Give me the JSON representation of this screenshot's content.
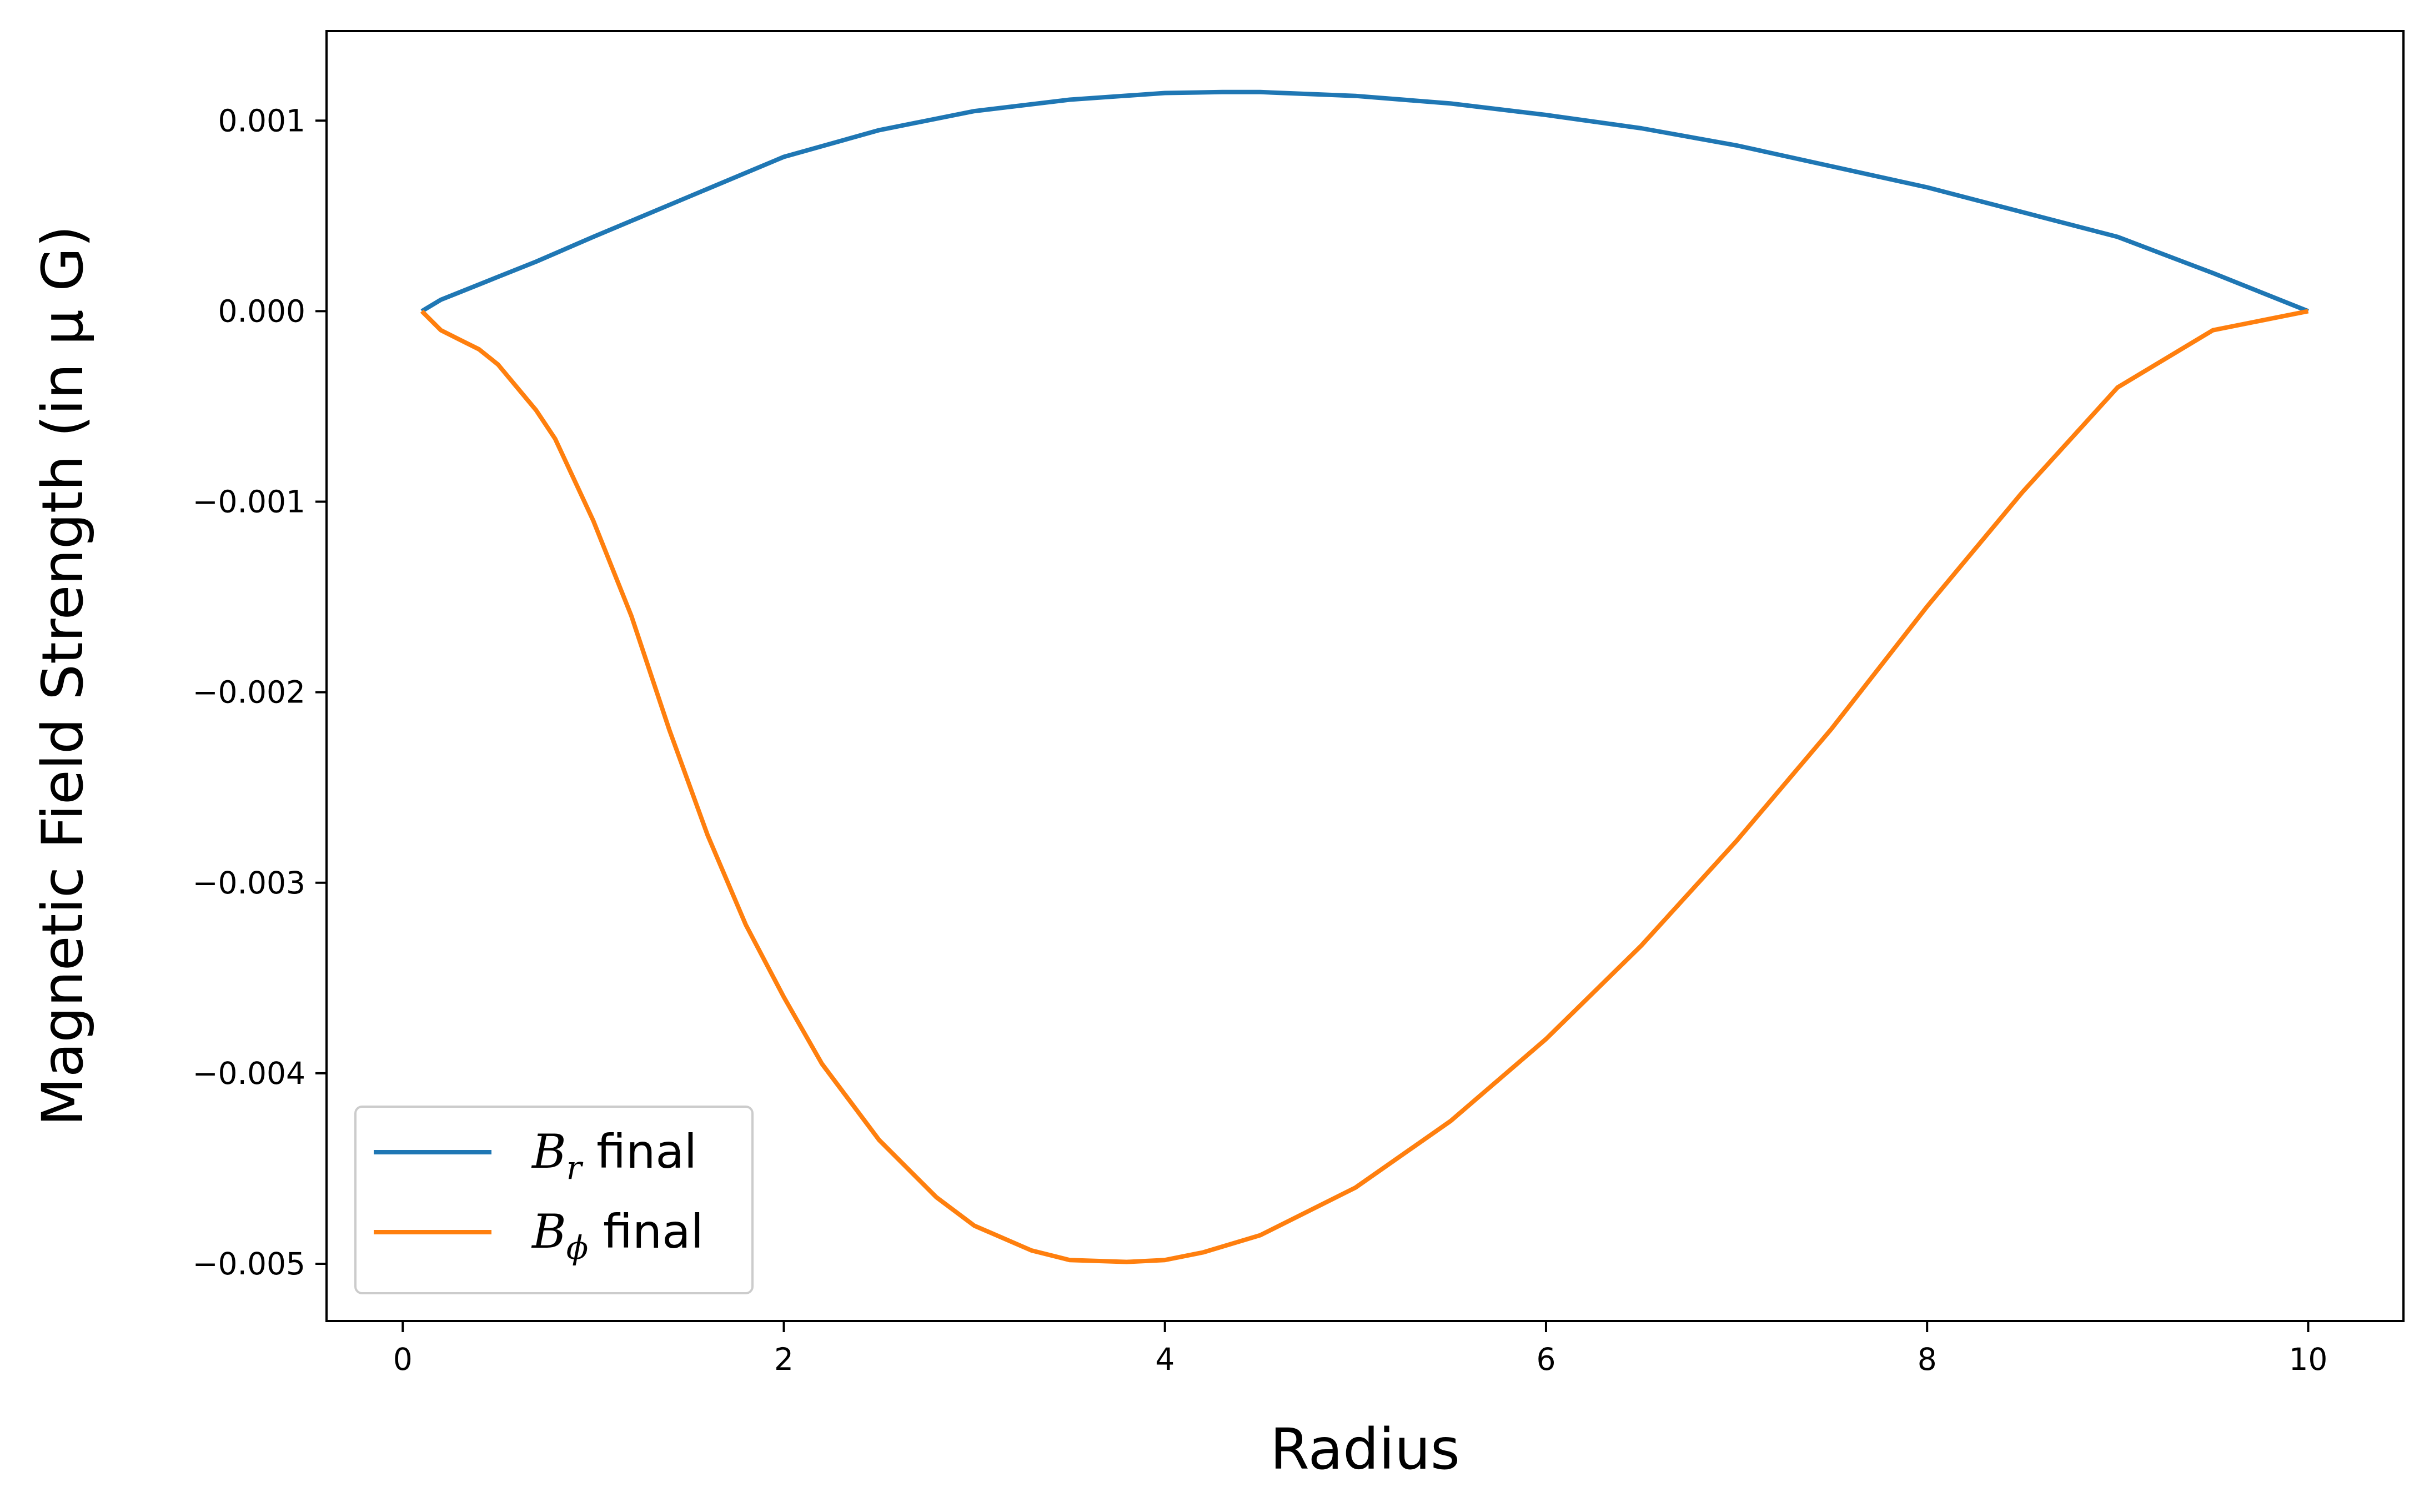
{
  "chart_data": {
    "type": "line",
    "title": "",
    "xlabel": "Radius",
    "ylabel": "Magnetic Field Strength (in μ G)",
    "xlim": [
      -0.4,
      10.5
    ],
    "ylim": [
      -0.0053,
      0.00147
    ],
    "xticks": [
      0,
      2,
      4,
      6,
      8,
      10
    ],
    "xtick_labels": [
      "0",
      "2",
      "4",
      "6",
      "8",
      "10"
    ],
    "yticks": [
      0.001,
      0.0,
      -0.001,
      -0.002,
      -0.003,
      -0.004,
      -0.005
    ],
    "ytick_labels": [
      "0.001",
      "0.000",
      "−0.001",
      "−0.002",
      "−0.003",
      "−0.004",
      "−0.005"
    ],
    "grid": false,
    "legend_position": "lower-left",
    "series": [
      {
        "name": "B_r final",
        "legend_symbol": "B",
        "legend_subscript": "r",
        "legend_suffix": " final",
        "color": "#1f77b4",
        "x": [
          0.1,
          0.2,
          0.3,
          0.4,
          0.5,
          0.7,
          1.0,
          1.5,
          2.0,
          2.5,
          3.0,
          3.5,
          4.0,
          4.3,
          4.5,
          5.0,
          5.5,
          6.0,
          6.5,
          7.0,
          7.5,
          8.0,
          8.5,
          9.0,
          9.5,
          10.0
        ],
        "values": [
          0.0,
          6e-05,
          0.0001,
          0.00014,
          0.00018,
          0.00026,
          0.00039,
          0.0006,
          0.00081,
          0.00095,
          0.00105,
          0.00111,
          0.001145,
          0.00115,
          0.00115,
          0.00113,
          0.00109,
          0.00103,
          0.00096,
          0.00087,
          0.00076,
          0.00065,
          0.00052,
          0.00039,
          0.0002,
          0.0
        ]
      },
      {
        "name": "B_phi final",
        "legend_symbol": "B",
        "legend_subscript": "ϕ",
        "legend_suffix": " final",
        "color": "#ff7f0e",
        "x": [
          0.1,
          0.2,
          0.3,
          0.4,
          0.5,
          0.6,
          0.7,
          0.8,
          1.0,
          1.2,
          1.4,
          1.6,
          1.8,
          2.0,
          2.2,
          2.5,
          2.8,
          3.0,
          3.3,
          3.5,
          3.8,
          4.0,
          4.2,
          4.5,
          5.0,
          5.5,
          6.0,
          6.5,
          7.0,
          7.5,
          8.0,
          8.5,
          9.0,
          9.5,
          10.0
        ],
        "values": [
          0.0,
          -0.0001,
          -0.00015,
          -0.0002,
          -0.00028,
          -0.0004,
          -0.00052,
          -0.00067,
          -0.0011,
          -0.0016,
          -0.0022,
          -0.00275,
          -0.00322,
          -0.0036,
          -0.00395,
          -0.00435,
          -0.00465,
          -0.0048,
          -0.00493,
          -0.00498,
          -0.00499,
          -0.00498,
          -0.00494,
          -0.00485,
          -0.0046,
          -0.00425,
          -0.00382,
          -0.00333,
          -0.00278,
          -0.00219,
          -0.00155,
          -0.00095,
          -0.0004,
          -0.0001,
          0.0
        ]
      }
    ]
  }
}
